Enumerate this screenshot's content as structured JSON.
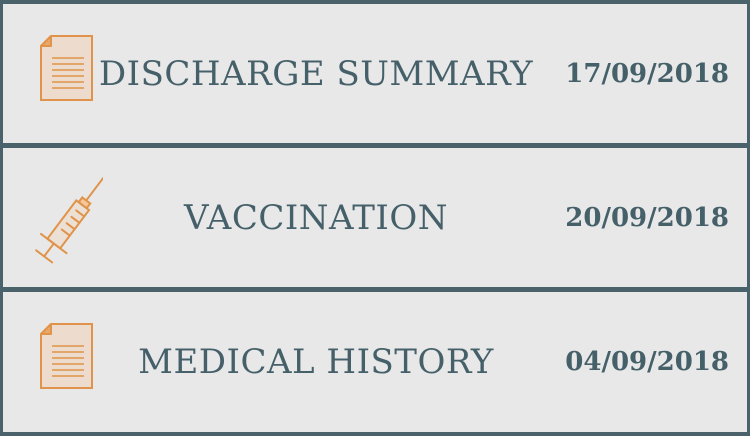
{
  "records": [
    {
      "icon": "document-icon",
      "title": "DISCHARGE SUMMARY",
      "date": "17/09/2018"
    },
    {
      "icon": "syringe-icon",
      "title": "VACCINATION",
      "date": "20/09/2018"
    },
    {
      "icon": "document-icon",
      "title": "MEDICAL HISTORY",
      "date": "04/09/2018"
    }
  ],
  "colors": {
    "background": "#4a636b",
    "row": "#e8e8e8",
    "text": "#46606a",
    "icon_stroke": "#e0934a",
    "icon_fill": "#f6c79a"
  }
}
